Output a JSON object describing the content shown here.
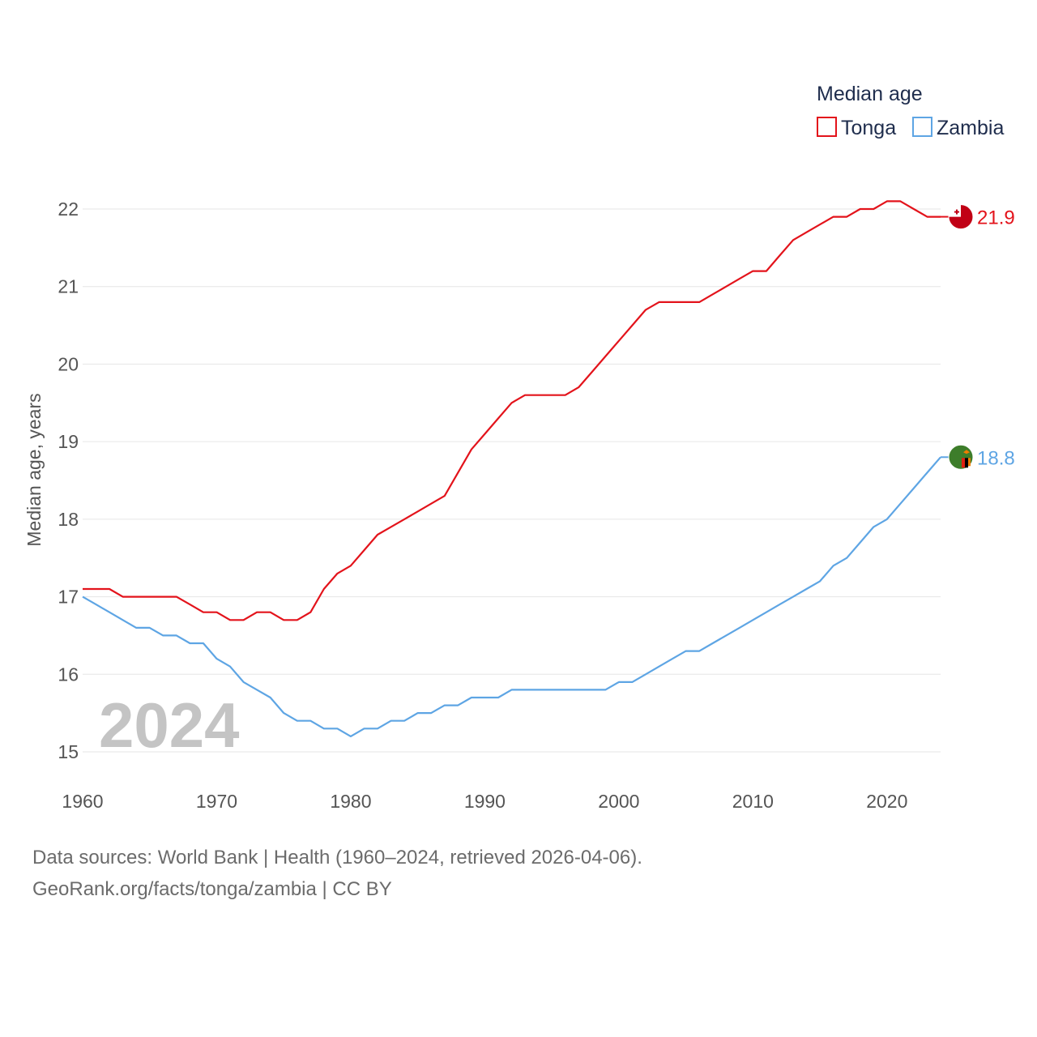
{
  "chart_data": {
    "type": "line",
    "ylabel": "Median age, years",
    "xlabel": "",
    "legend_title": "Median age",
    "legend_position": "top-right",
    "xlim": [
      1960,
      2024
    ],
    "ylim": [
      15,
      22
    ],
    "x_ticks": [
      1960,
      1970,
      1980,
      1990,
      2000,
      2010,
      2020
    ],
    "y_ticks": [
      15,
      16,
      17,
      18,
      19,
      20,
      21,
      22
    ],
    "grid": true,
    "year_overlay": "2024",
    "x": [
      1960,
      1961,
      1962,
      1963,
      1964,
      1965,
      1966,
      1967,
      1968,
      1969,
      1970,
      1971,
      1972,
      1973,
      1974,
      1975,
      1976,
      1977,
      1978,
      1979,
      1980,
      1981,
      1982,
      1983,
      1984,
      1985,
      1986,
      1987,
      1988,
      1989,
      1990,
      1991,
      1992,
      1993,
      1994,
      1995,
      1996,
      1997,
      1998,
      1999,
      2000,
      2001,
      2002,
      2003,
      2004,
      2005,
      2006,
      2007,
      2008,
      2009,
      2010,
      2011,
      2012,
      2013,
      2014,
      2015,
      2016,
      2017,
      2018,
      2019,
      2020,
      2021,
      2022,
      2023,
      2024
    ],
    "series": [
      {
        "name": "Tonga",
        "color": "#e3131b",
        "end_label": "21.9",
        "flag": "tonga-flag",
        "values": [
          17.1,
          17.1,
          17.1,
          17.0,
          17.0,
          17.0,
          17.0,
          17.0,
          16.9,
          16.8,
          16.8,
          16.7,
          16.7,
          16.8,
          16.8,
          16.7,
          16.7,
          16.8,
          17.1,
          17.3,
          17.4,
          17.6,
          17.8,
          17.9,
          18.0,
          18.1,
          18.2,
          18.3,
          18.6,
          18.9,
          19.1,
          19.3,
          19.5,
          19.6,
          19.6,
          19.6,
          19.6,
          19.7,
          19.9,
          20.1,
          20.3,
          20.5,
          20.7,
          20.8,
          20.8,
          20.8,
          20.8,
          20.9,
          21.0,
          21.1,
          21.2,
          21.2,
          21.4,
          21.6,
          21.7,
          21.8,
          21.9,
          21.9,
          22.0,
          22.0,
          22.1,
          22.1,
          22.0,
          21.9,
          21.9
        ]
      },
      {
        "name": "Zambia",
        "color": "#5ea5e4",
        "end_label": "18.8",
        "flag": "zambia-flag",
        "values": [
          17.0,
          16.9,
          16.8,
          16.7,
          16.6,
          16.6,
          16.5,
          16.5,
          16.4,
          16.4,
          16.2,
          16.1,
          15.9,
          15.8,
          15.7,
          15.5,
          15.4,
          15.4,
          15.3,
          15.3,
          15.2,
          15.3,
          15.3,
          15.4,
          15.4,
          15.5,
          15.5,
          15.6,
          15.6,
          15.7,
          15.7,
          15.7,
          15.8,
          15.8,
          15.8,
          15.8,
          15.8,
          15.8,
          15.8,
          15.8,
          15.9,
          15.9,
          16.0,
          16.1,
          16.2,
          16.3,
          16.3,
          16.4,
          16.5,
          16.6,
          16.7,
          16.8,
          16.9,
          17.0,
          17.1,
          17.2,
          17.4,
          17.5,
          17.7,
          17.9,
          18.0,
          18.2,
          18.4,
          18.6,
          18.8
        ]
      }
    ]
  },
  "footer": {
    "line1": "Data sources: World Bank | Health (1960–2024, retrieved 2026-04-06).",
    "line2": "GeoRank.org/facts/tonga/zambia | CC BY"
  }
}
